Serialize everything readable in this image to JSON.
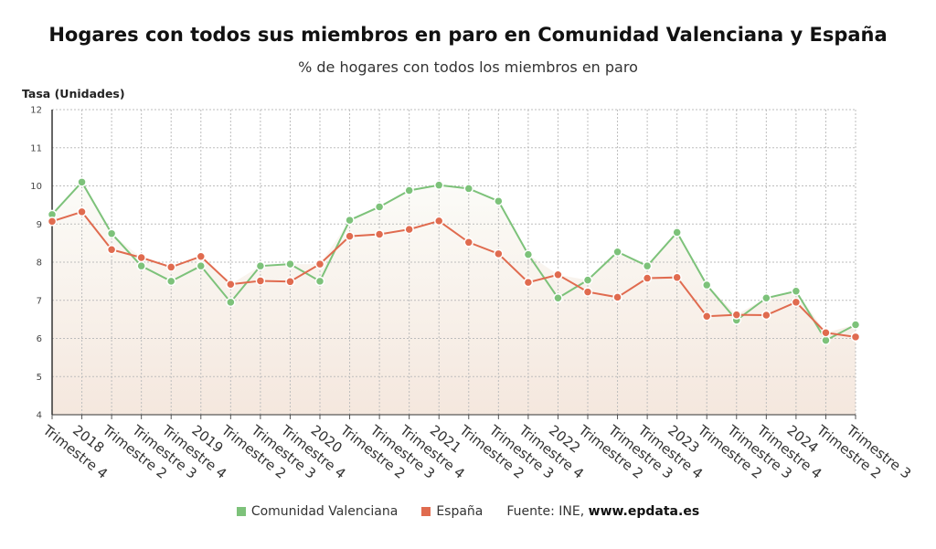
{
  "chart_data": {
    "type": "line",
    "title": "Hogares con todos sus miembros en paro en Comunidad Valenciana y España",
    "subtitle": "% de hogares con todos los miembros en paro",
    "ylabel": "Tasa (Unidades)",
    "ylim": [
      4,
      12
    ],
    "yticks": [
      4,
      5,
      6,
      7,
      8,
      9,
      10,
      11,
      12
    ],
    "grid": true,
    "legend_position": "bottom-center",
    "x_tick_labels": [
      "Trimestre 4",
      "2018",
      "Trimestre 2",
      "Trimestre 3",
      "Trimestre 4",
      "2019",
      "Trimestre 2",
      "Trimestre 3",
      "Trimestre 4",
      "2020",
      "Trimestre 2",
      "Trimestre 3",
      "Trimestre 4",
      "2021",
      "Trimestre 2",
      "Trimestre 3",
      "Trimestre 4",
      "2022",
      "Trimestre 2",
      "Trimestre 3",
      "Trimestre 4",
      "2023",
      "Trimestre 2",
      "Trimestre 3",
      "Trimestre 4",
      "2024",
      "Trimestre 2",
      "Trimestre 3"
    ],
    "series": [
      {
        "name": "Comunidad Valenciana",
        "color": "#7dc27a",
        "values": [
          9.25,
          10.1,
          8.75,
          7.9,
          7.5,
          7.9,
          6.95,
          7.9,
          7.95,
          7.5,
          9.1,
          9.45,
          9.88,
          10.02,
          9.93,
          9.6,
          8.2,
          7.06,
          7.53,
          8.27,
          7.9,
          8.78,
          7.4,
          6.48,
          7.06,
          7.24,
          5.95,
          6.36
        ]
      },
      {
        "name": "España",
        "color": "#e06b4f",
        "values": [
          9.07,
          9.32,
          8.33,
          8.12,
          7.87,
          8.15,
          7.42,
          7.51,
          7.49,
          7.95,
          8.68,
          8.73,
          8.86,
          9.08,
          8.52,
          8.22,
          7.47,
          7.67,
          7.22,
          7.08,
          7.58,
          7.6,
          6.58,
          6.62,
          6.61,
          6.95,
          6.15,
          6.04
        ]
      }
    ],
    "source_label": "Fuente: INE,",
    "source_site": "www.epdata.es"
  }
}
